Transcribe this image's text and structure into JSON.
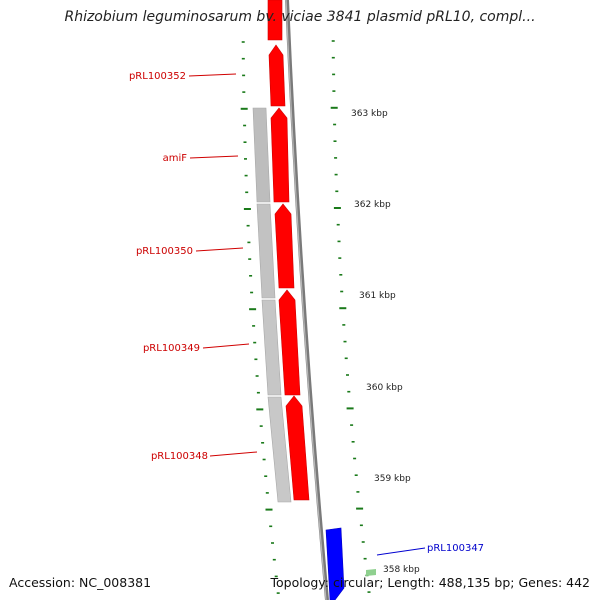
{
  "title": "Rhizobium leguminosarum bv. viciae 3841 plasmid pRL10, compl...",
  "accession_text": "Accession: NC_008381",
  "summary_text": "Topology: circular; Length: 488,135 bp; Genes: 442",
  "genes": [
    {
      "label": "pRL100352",
      "strand": "plus",
      "color": "#ff0000"
    },
    {
      "label": "amiF",
      "strand": "plus",
      "color": "#ff0000"
    },
    {
      "label": "pRL100350",
      "strand": "plus",
      "color": "#ff0000"
    },
    {
      "label": "pRL100349",
      "strand": "plus",
      "color": "#ff0000"
    },
    {
      "label": "pRL100348",
      "strand": "plus",
      "color": "#ff0000"
    },
    {
      "label": "pRL100347",
      "strand": "minus",
      "color": "#0000ff"
    }
  ],
  "kbp_ticks": [
    {
      "label": "363 kbp"
    },
    {
      "label": "362 kbp"
    },
    {
      "label": "361 kbp"
    },
    {
      "label": "360 kbp"
    },
    {
      "label": "359 kbp"
    },
    {
      "label": "358 kbp"
    }
  ],
  "colors": {
    "plus_gene": "#ff0000",
    "minus_gene": "#0000ff",
    "cds_gray": "#bdbdbd",
    "backbone": "#808080",
    "tick": "#1a7a1a"
  }
}
